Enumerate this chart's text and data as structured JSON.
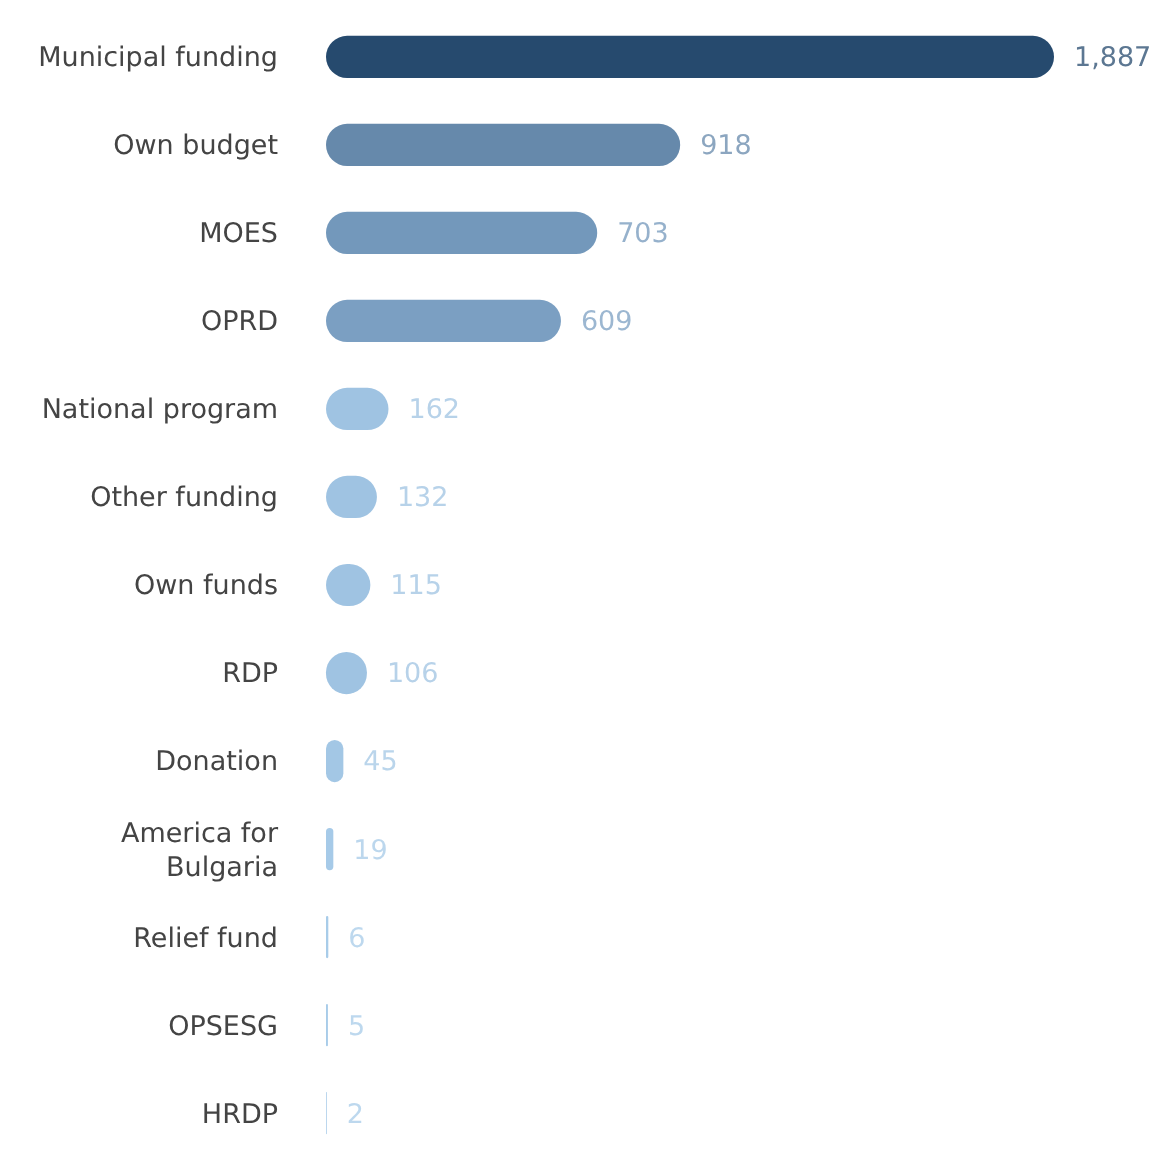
{
  "chart_data": {
    "type": "bar",
    "orientation": "horizontal",
    "value_labels": [
      "1,887",
      "918",
      "703",
      "609",
      "162",
      "132",
      "115",
      "106",
      "45",
      "19",
      "6",
      "5",
      "2"
    ],
    "categories": [
      "Municipal funding",
      "Own budget",
      "MOES",
      "OPRD",
      "National program",
      "Other funding",
      "Own funds",
      "RDP",
      "Donation",
      "America for Bulgaria",
      "Relief fund",
      "OPSESG",
      "HRDP"
    ],
    "values": [
      1887,
      918,
      703,
      609,
      162,
      132,
      115,
      106,
      45,
      19,
      6,
      5,
      2
    ],
    "colors": [
      "#264a6e",
      "#6689ab",
      "#7398bb",
      "#7b9fc2",
      "#9fc3e2",
      "#9fc3e2",
      "#9fc3e2",
      "#9fc3e2",
      "#a3c7e5",
      "#a6cae8",
      "#a8cce9",
      "#a8cce9",
      "#a8cce9"
    ]
  }
}
